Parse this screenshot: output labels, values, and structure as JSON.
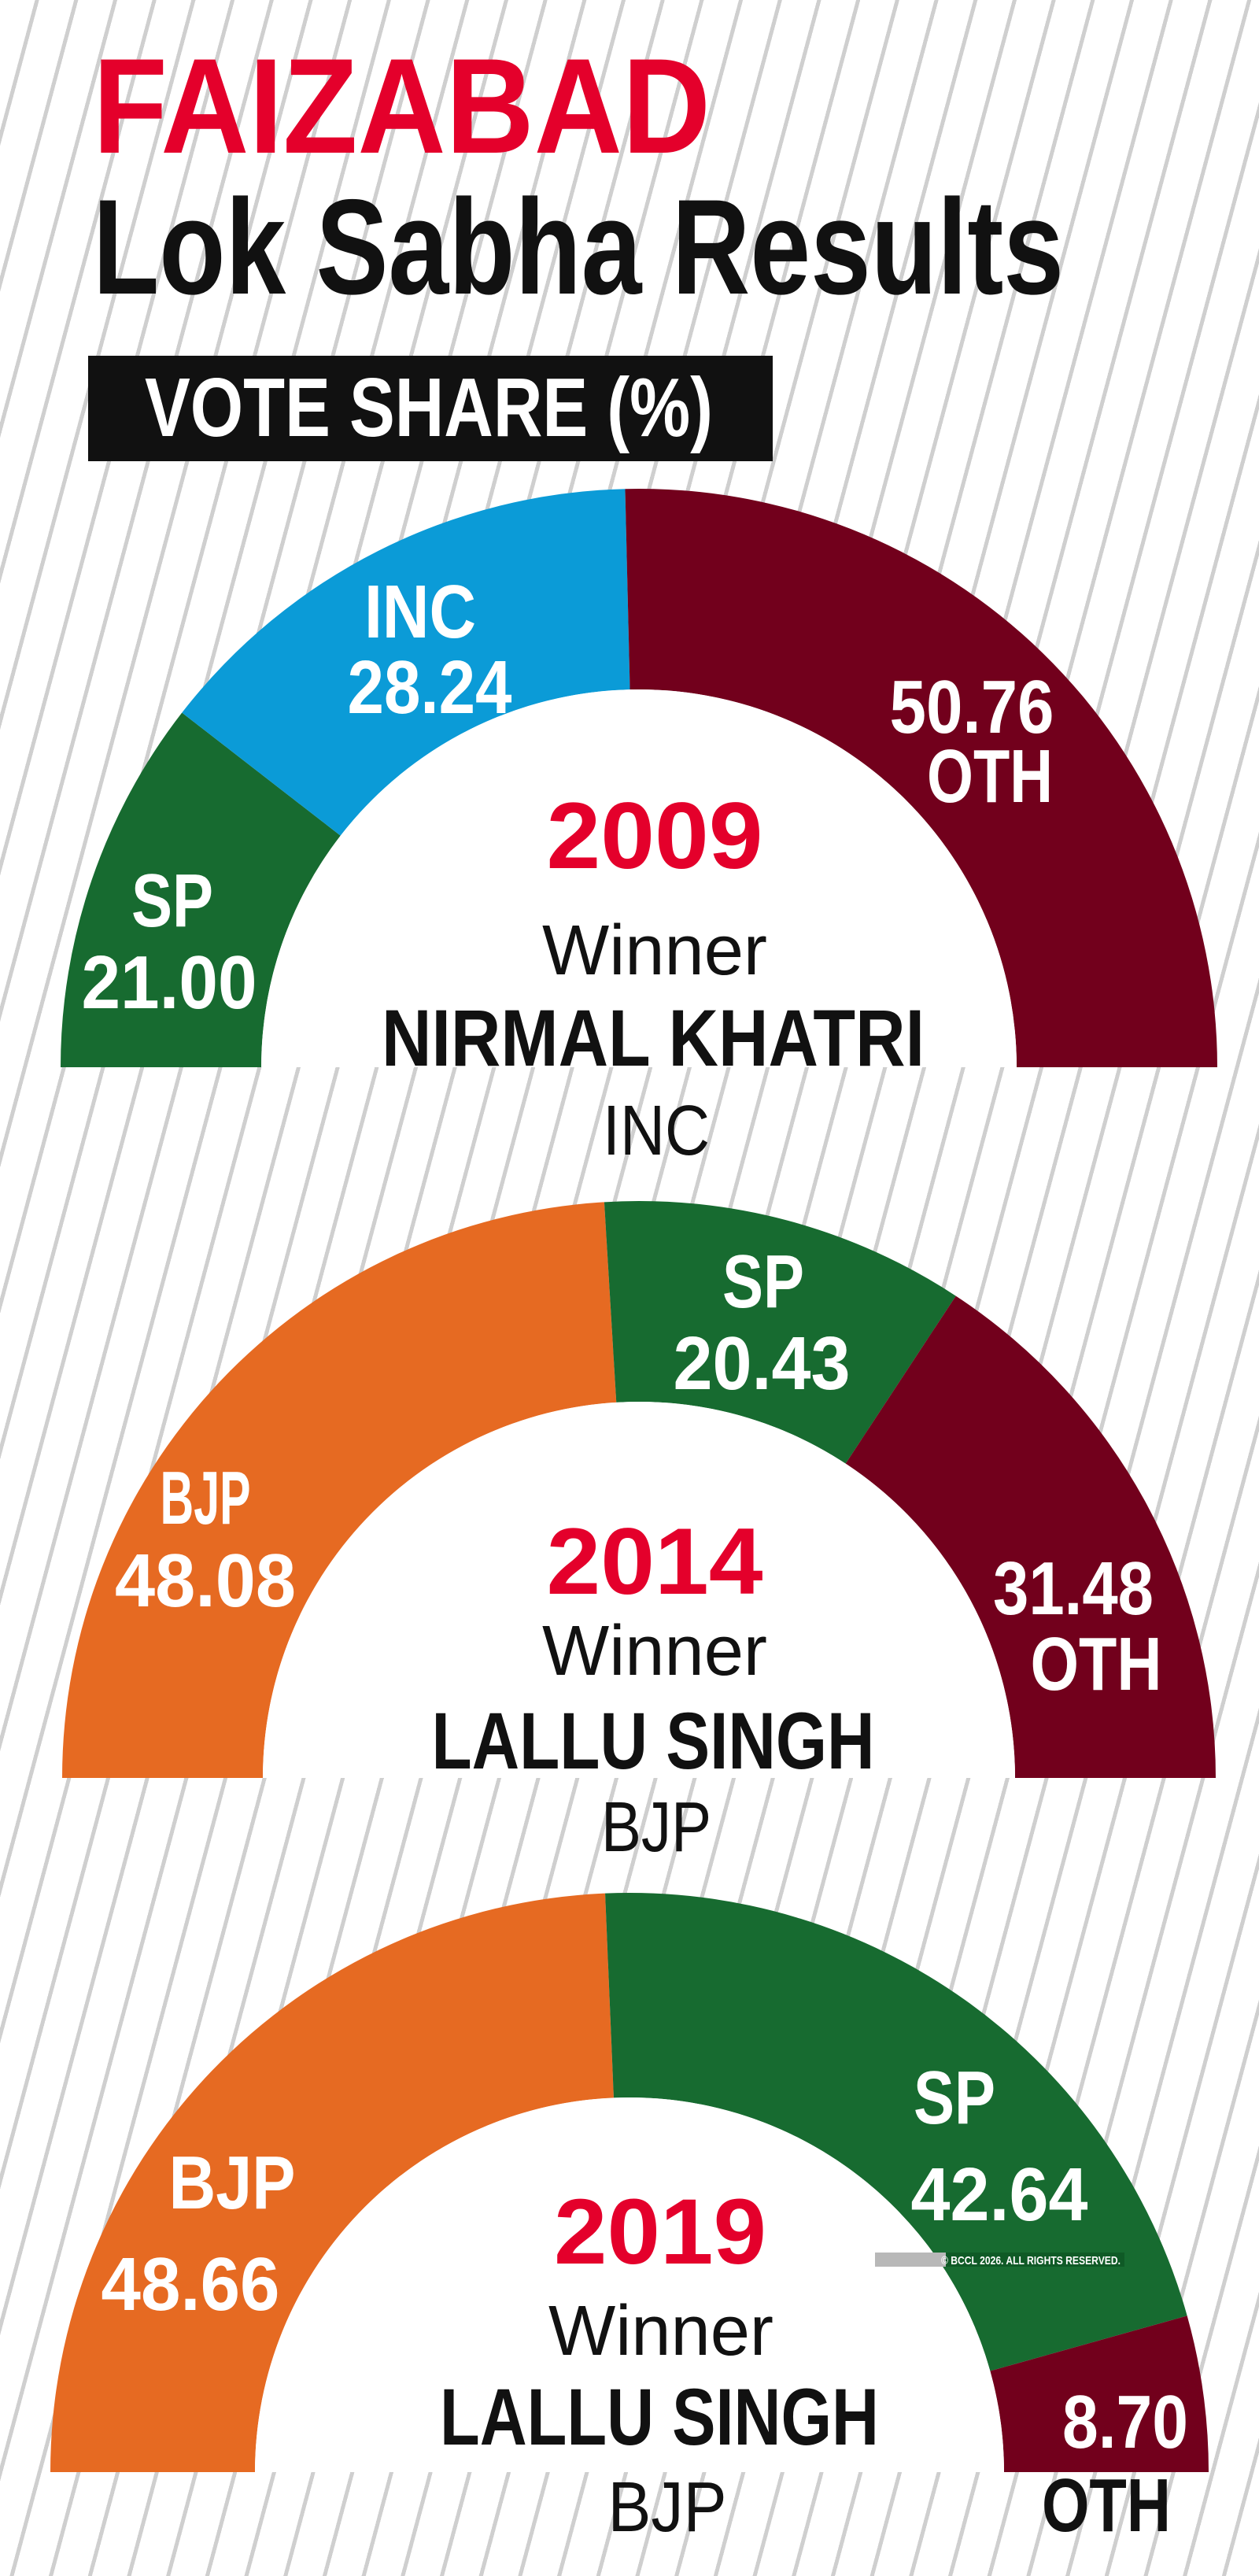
{
  "header": {
    "title": "FAIZABAD",
    "subtitle": "Lok Sabha Results",
    "section_label": "VOTE SHARE (%)"
  },
  "colors": {
    "title_red": "#e4002b",
    "SP": "#176b30",
    "INC": "#0b9bd7",
    "OTH": "#72001c",
    "BJP": "#e66a22",
    "hub": "#ffffff"
  },
  "copyright": "© BCCL 2026. ALL RIGHTS RESERVED.",
  "chart_data": [
    {
      "type": "pie",
      "variant": "half-donut",
      "title": "2009",
      "winner_label": "Winner",
      "winner_name": "NIRMAL KHATRI",
      "winner_party": "INC",
      "segments": [
        {
          "party": "SP",
          "value": "21.00"
        },
        {
          "party": "INC",
          "value": "28.24"
        },
        {
          "party": "OTH",
          "value": "50.76"
        }
      ]
    },
    {
      "type": "pie",
      "variant": "half-donut",
      "title": "2014",
      "winner_label": "Winner",
      "winner_name": "LALLU SINGH",
      "winner_party": "BJP",
      "segments": [
        {
          "party": "BJP",
          "value": "48.08"
        },
        {
          "party": "SP",
          "value": "20.43"
        },
        {
          "party": "OTH",
          "value": "31.48"
        }
      ]
    },
    {
      "type": "pie",
      "variant": "half-donut",
      "title": "2019",
      "winner_label": "Winner",
      "winner_name": "LALLU SINGH",
      "winner_party": "BJP",
      "segments": [
        {
          "party": "BJP",
          "value": "48.66"
        },
        {
          "party": "SP",
          "value": "42.64"
        },
        {
          "party": "OTH",
          "value": "8.70"
        }
      ]
    }
  ]
}
